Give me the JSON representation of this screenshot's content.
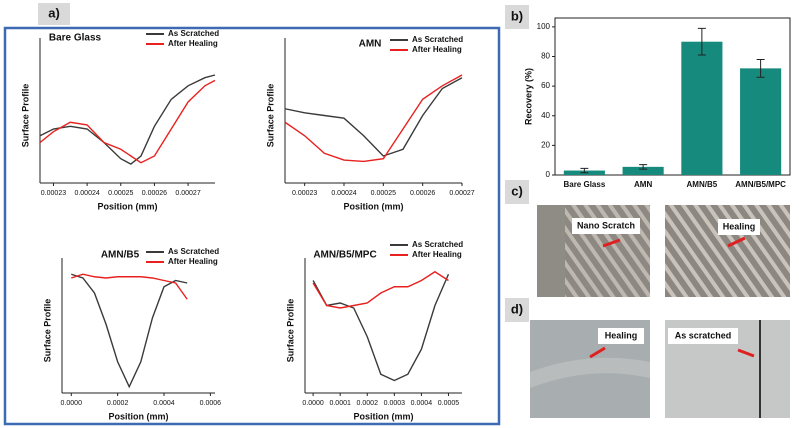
{
  "figure": {
    "panel_labels": [
      "a)",
      "b)",
      "c)",
      "d)"
    ],
    "annotations": [
      "Nano Scratch",
      "Healing",
      "Healing",
      "As scratched"
    ]
  },
  "chart_data": [
    {
      "type": "line",
      "title": "Bare Glass",
      "x_label": "Position (mm)",
      "y_label": "Surface Profile",
      "x": [
        0.000226,
        0.00023,
        0.000235,
        0.00024,
        0.000245,
        0.00025,
        0.000253,
        0.000256,
        0.00026,
        0.000265,
        0.00027,
        0.000275,
        0.000278
      ],
      "series": [
        {
          "name": "As Scratched",
          "color": "#3a3a3a",
          "values": [
            35,
            40,
            42,
            40,
            30,
            18,
            14,
            20,
            42,
            62,
            72,
            78,
            80
          ]
        },
        {
          "name": "After Healing",
          "color": "#e8211f",
          "values": [
            30,
            38,
            45,
            43,
            30,
            25,
            20,
            15,
            20,
            40,
            60,
            72,
            76
          ]
        }
      ],
      "xlim": [
        0.000226,
        0.000278
      ],
      "xticks": [
        0.00023,
        0.00024,
        0.00025,
        0.00026,
        0.00027
      ],
      "ylim": [
        0,
        100
      ]
    },
    {
      "type": "line",
      "title": "AMN",
      "x_label": "Position (mm)",
      "y_label": "Surface Profile",
      "x": [
        0.000225,
        0.00023,
        0.000235,
        0.00024,
        0.000245,
        0.00025,
        0.000255,
        0.00026,
        0.000265,
        0.00027
      ],
      "series": [
        {
          "name": "As Scratched",
          "color": "#3a3a3a",
          "values": [
            55,
            52,
            50,
            48,
            35,
            20,
            25,
            50,
            70,
            78
          ]
        },
        {
          "name": "After Healing",
          "color": "#e8211f",
          "values": [
            45,
            35,
            22,
            17,
            16,
            18,
            40,
            62,
            72,
            80
          ]
        }
      ],
      "xlim": [
        0.000225,
        0.00027
      ],
      "xticks": [
        0.00023,
        0.00024,
        0.00025,
        0.00026,
        0.00027
      ],
      "ylim": [
        0,
        100
      ]
    },
    {
      "type": "line",
      "title": "AMN/B5",
      "x_label": "Position (mm)",
      "y_label": "Surface Profile",
      "x": [
        0,
        5e-05,
        0.0001,
        0.00015,
        0.0002,
        0.00025,
        0.0003,
        0.00035,
        0.0004,
        0.00045,
        0.0005
      ],
      "series": [
        {
          "name": "As Scratched",
          "color": "#3a3a3a",
          "values": [
            95,
            92,
            80,
            55,
            25,
            5,
            25,
            60,
            85,
            90,
            88
          ]
        },
        {
          "name": "After Healing",
          "color": "#e8211f",
          "values": [
            92,
            95,
            93,
            92,
            93,
            93,
            93,
            92,
            90,
            88,
            75
          ]
        }
      ],
      "xlim": [
        -4e-05,
        0.00062
      ],
      "xticks": [
        {
          "value": 0,
          "label": "0.0000"
        },
        {
          "value": 0.0002,
          "label": "0.0002"
        },
        {
          "value": 0.0004,
          "label": "0.0004"
        },
        {
          "value": 0.0006,
          "label": "0.0006"
        }
      ],
      "ylim": [
        0,
        100
      ]
    },
    {
      "type": "line",
      "title": "AMN/B5/MPC",
      "x_label": "Position (mm)",
      "y_label": "Surface Profile",
      "x": [
        0,
        5e-05,
        0.0001,
        0.00015,
        0.0002,
        0.00025,
        0.0003,
        0.00035,
        0.0004,
        0.00045,
        0.0005
      ],
      "series": [
        {
          "name": "As Scratched",
          "color": "#3a3a3a",
          "values": [
            90,
            70,
            72,
            68,
            45,
            15,
            10,
            15,
            35,
            70,
            95
          ]
        },
        {
          "name": "After Healing",
          "color": "#e8211f",
          "values": [
            88,
            70,
            68,
            70,
            72,
            80,
            85,
            85,
            90,
            97,
            90
          ]
        }
      ],
      "xlim": [
        -3e-05,
        0.00055
      ],
      "xticks": [
        {
          "value": 0,
          "label": "0.0000"
        },
        {
          "value": 0.0001,
          "label": "0.0001"
        },
        {
          "value": 0.0002,
          "label": "0.0002"
        },
        {
          "value": 0.0003,
          "label": "0.0003"
        },
        {
          "value": 0.0004,
          "label": "0.0004"
        },
        {
          "value": 0.0005,
          "label": "0.0005"
        }
      ],
      "ylim": [
        0,
        100
      ]
    },
    {
      "type": "bar",
      "y_label": "Recovery (%)",
      "categories": [
        "Bare Glass",
        "AMN",
        "AMN/B5",
        "AMN/B5/MPC"
      ],
      "values": [
        3,
        5.5,
        90,
        72
      ],
      "errors": [
        1.5,
        1.5,
        9,
        6
      ],
      "color": "#178a7e",
      "ylim": [
        0,
        106
      ],
      "yticks": [
        0,
        20,
        40,
        60,
        80,
        100
      ]
    }
  ]
}
